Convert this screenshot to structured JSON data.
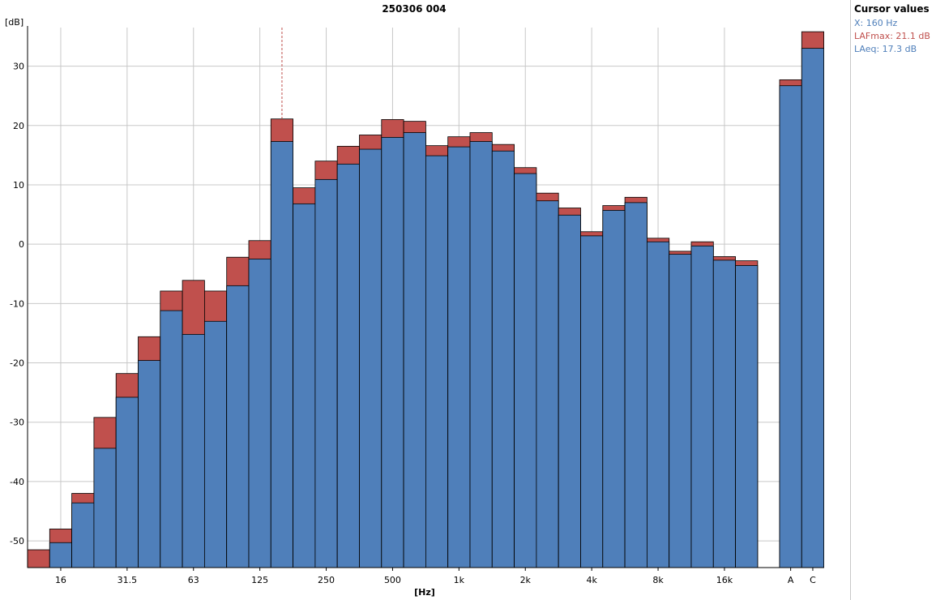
{
  "colors": {
    "laeq": "#4f7fba",
    "lafmax": "#c0504d",
    "grid": "#c8c8c8",
    "cursor": "#c0504d",
    "text": "#000000"
  },
  "cursor_panel": {
    "title": "Cursor values",
    "x_line": "X: 160 Hz",
    "lafmax_line": "LAFmax: 21.1 dB",
    "laeq_line": "LAeq: 17.3 dB"
  },
  "chart_data": {
    "type": "bar",
    "title": "250306 004",
    "xlabel": "[Hz]",
    "ylabel": "[dB]",
    "ylim": [
      -54.5,
      36.5
    ],
    "yticks": [
      30,
      20,
      10,
      0,
      -10,
      -20,
      -30,
      -40,
      -50
    ],
    "grid": true,
    "stacked_overlay": true,
    "cursor_category": "160",
    "categories": [
      "12.5",
      "16",
      "20",
      "25",
      "31.5",
      "40",
      "50",
      "63",
      "80",
      "100",
      "125",
      "160",
      "200",
      "250",
      "315",
      "400",
      "500",
      "630",
      "800",
      "1k",
      "1.25k",
      "1.6k",
      "2k",
      "2.5k",
      "3.15k",
      "4k",
      "5k",
      "6.3k",
      "8k",
      "10k",
      "12.5k",
      "16k",
      "20k",
      "A",
      "C"
    ],
    "tick_labels": [
      "",
      "16",
      "",
      "",
      "31.5",
      "",
      "",
      "63",
      "",
      "",
      "125",
      "",
      "",
      "250",
      "",
      "",
      "500",
      "",
      "",
      "1k",
      "",
      "",
      "2k",
      "",
      "",
      "4k",
      "",
      "",
      "8k",
      "",
      "",
      "16k",
      "",
      "A",
      "C"
    ],
    "series": [
      {
        "name": "LAFmax",
        "values": [
          -51.5,
          -48.0,
          -42.0,
          -29.2,
          -21.8,
          -15.6,
          -7.9,
          -6.1,
          -7.9,
          -2.2,
          0.6,
          21.1,
          9.5,
          14.0,
          16.5,
          18.4,
          21.0,
          20.7,
          16.6,
          18.1,
          18.8,
          16.8,
          12.9,
          8.6,
          6.1,
          2.1,
          6.5,
          7.9,
          1.0,
          -1.2,
          0.4,
          -2.1,
          -2.8,
          27.7,
          35.8
        ]
      },
      {
        "name": "LAeq",
        "values": [
          null,
          -50.3,
          -43.6,
          -34.4,
          -25.8,
          -19.6,
          -11.2,
          -15.2,
          -13.0,
          -7.0,
          -2.5,
          17.3,
          6.8,
          10.9,
          13.5,
          16.0,
          18.0,
          18.8,
          14.9,
          16.4,
          17.3,
          15.7,
          11.9,
          7.3,
          4.9,
          1.4,
          5.7,
          7.0,
          0.4,
          -1.7,
          -0.3,
          -2.7,
          -3.6,
          26.7,
          33.0
        ]
      }
    ]
  }
}
